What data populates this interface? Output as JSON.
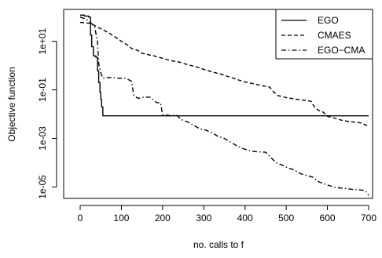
{
  "chart_data": {
    "type": "line",
    "xlabel": "no. calls to f",
    "ylabel": "Objective function",
    "xlim": [
      0,
      700
    ],
    "ylim": [
      3.38e-06,
      205.6
    ],
    "y_scale": "log",
    "x_ticks": [
      0,
      100,
      200,
      300,
      400,
      500,
      600,
      700
    ],
    "x_tick_labels": [
      "0",
      "100",
      "200",
      "300",
      "400",
      "500",
      "600",
      "700"
    ],
    "y_ticks": [
      1e-05,
      0.001,
      0.1,
      10
    ],
    "y_tick_labels": [
      "1e-05",
      "1e-03",
      "1e-01",
      "1e+01"
    ],
    "legend_position": "top-right",
    "grid": false,
    "series": [
      {
        "name": "EGO",
        "line_style": "solid",
        "color": "#000000",
        "points": [
          [
            0,
            120
          ],
          [
            10,
            120
          ],
          [
            10,
            110
          ],
          [
            20,
            110
          ],
          [
            20,
            100
          ],
          [
            25,
            100
          ],
          [
            25,
            18
          ],
          [
            28,
            18
          ],
          [
            28,
            6
          ],
          [
            32,
            6
          ],
          [
            32,
            2.5
          ],
          [
            38,
            2.5
          ],
          [
            38,
            2.2
          ],
          [
            42,
            2.2
          ],
          [
            42,
            0.6
          ],
          [
            45,
            0.6
          ],
          [
            45,
            0.2
          ],
          [
            48,
            0.2
          ],
          [
            48,
            0.08
          ],
          [
            50,
            0.08
          ],
          [
            50,
            0.04
          ],
          [
            52,
            0.04
          ],
          [
            52,
            0.02
          ],
          [
            55,
            0.02
          ],
          [
            55,
            0.0085
          ],
          [
            700,
            0.0085
          ]
        ]
      },
      {
        "name": "CMAES",
        "line_style": "dashed",
        "color": "#000000",
        "points": [
          [
            0,
            60
          ],
          [
            25,
            55
          ],
          [
            40,
            40
          ],
          [
            55,
            30
          ],
          [
            70,
            22
          ],
          [
            85,
            15
          ],
          [
            100,
            10
          ],
          [
            115,
            7
          ],
          [
            125,
            5
          ],
          [
            140,
            4.2
          ],
          [
            150,
            3.2
          ],
          [
            170,
            2.7
          ],
          [
            180,
            2.5
          ],
          [
            190,
            2.2
          ],
          [
            200,
            2
          ],
          [
            220,
            1.6
          ],
          [
            240,
            1.4
          ],
          [
            260,
            1.1
          ],
          [
            280,
            0.9
          ],
          [
            300,
            0.7
          ],
          [
            320,
            0.55
          ],
          [
            340,
            0.45
          ],
          [
            360,
            0.35
          ],
          [
            380,
            0.27
          ],
          [
            400,
            0.21
          ],
          [
            420,
            0.18
          ],
          [
            440,
            0.15
          ],
          [
            460,
            0.13
          ],
          [
            470,
            0.08
          ],
          [
            480,
            0.058
          ],
          [
            490,
            0.053
          ],
          [
            500,
            0.048
          ],
          [
            520,
            0.042
          ],
          [
            540,
            0.038
          ],
          [
            560,
            0.034
          ],
          [
            570,
            0.018
          ],
          [
            580,
            0.014
          ],
          [
            590,
            0.012
          ],
          [
            600,
            0.0082
          ],
          [
            620,
            0.0066
          ],
          [
            640,
            0.0053
          ],
          [
            660,
            0.0048
          ],
          [
            680,
            0.0044
          ],
          [
            700,
            0.0032
          ]
        ]
      },
      {
        "name": "EGO−CMA",
        "line_style": "dotdash",
        "color": "#000000",
        "points": [
          [
            0,
            100
          ],
          [
            15,
            80
          ],
          [
            25,
            60
          ],
          [
            35,
            40
          ],
          [
            42,
            10
          ],
          [
            45,
            1.2
          ],
          [
            50,
            0.5
          ],
          [
            55,
            0.3
          ],
          [
            60,
            0.32
          ],
          [
            80,
            0.32
          ],
          [
            95,
            0.3
          ],
          [
            110,
            0.3
          ],
          [
            120,
            0.25
          ],
          [
            125,
            0.22
          ],
          [
            130,
            0.06
          ],
          [
            140,
            0.045
          ],
          [
            155,
            0.05
          ],
          [
            170,
            0.05
          ],
          [
            185,
            0.03
          ],
          [
            195,
            0.029
          ],
          [
            200,
            0.0095
          ],
          [
            215,
            0.0088
          ],
          [
            235,
            0.0088
          ],
          [
            245,
            0.006
          ],
          [
            260,
            0.0048
          ],
          [
            275,
            0.0035
          ],
          [
            290,
            0.0025
          ],
          [
            305,
            0.0022
          ],
          [
            320,
            0.0017
          ],
          [
            335,
            0.0012
          ],
          [
            350,
            0.001
          ],
          [
            365,
            0.0007
          ],
          [
            380,
            0.0005
          ],
          [
            395,
            0.00038
          ],
          [
            415,
            0.0003
          ],
          [
            430,
            0.00028
          ],
          [
            450,
            0.00027
          ],
          [
            465,
            0.00015
          ],
          [
            475,
            0.0001
          ],
          [
            490,
            8e-05
          ],
          [
            505,
            6e-05
          ],
          [
            520,
            5e-05
          ],
          [
            535,
            3.5e-05
          ],
          [
            550,
            3e-05
          ],
          [
            565,
            2.5e-05
          ],
          [
            580,
            1.6e-05
          ],
          [
            600,
            1.2e-05
          ],
          [
            620,
            9.5e-06
          ],
          [
            640,
            8.8e-06
          ],
          [
            660,
            8e-06
          ],
          [
            680,
            7.5e-06
          ],
          [
            690,
            7.2e-06
          ],
          [
            695,
            6e-06
          ],
          [
            700,
            4.5e-06
          ]
        ]
      }
    ]
  }
}
